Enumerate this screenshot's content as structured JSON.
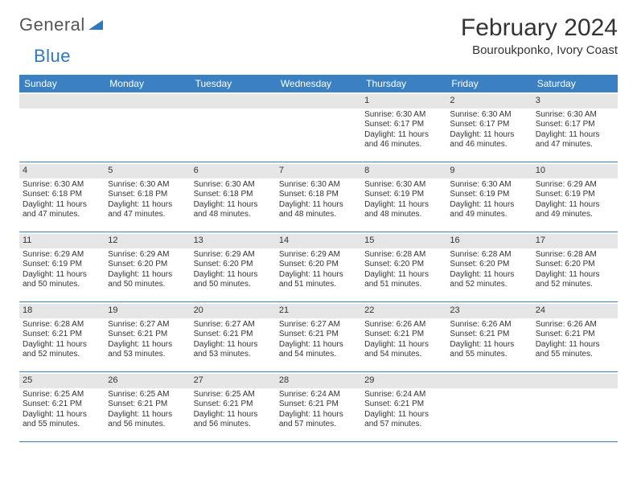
{
  "logo": {
    "word1": "General",
    "word2": "Blue"
  },
  "header": {
    "title": "February 2024",
    "location": "Bouroukponko, Ivory Coast"
  },
  "colors": {
    "header_bg": "#3a80c3",
    "header_text": "#ffffff",
    "daynum_bg": "#e6e6e6",
    "logo_gray": "#555555",
    "logo_blue": "#2e79bd",
    "row_border": "#3a80c3"
  },
  "weekdays": [
    "Sunday",
    "Monday",
    "Tuesday",
    "Wednesday",
    "Thursday",
    "Friday",
    "Saturday"
  ],
  "weeks": [
    [
      {
        "day": "",
        "sunrise": "",
        "sunset": "",
        "daylight": ""
      },
      {
        "day": "",
        "sunrise": "",
        "sunset": "",
        "daylight": ""
      },
      {
        "day": "",
        "sunrise": "",
        "sunset": "",
        "daylight": ""
      },
      {
        "day": "",
        "sunrise": "",
        "sunset": "",
        "daylight": ""
      },
      {
        "day": "1",
        "sunrise": "Sunrise: 6:30 AM",
        "sunset": "Sunset: 6:17 PM",
        "daylight": "Daylight: 11 hours and 46 minutes."
      },
      {
        "day": "2",
        "sunrise": "Sunrise: 6:30 AM",
        "sunset": "Sunset: 6:17 PM",
        "daylight": "Daylight: 11 hours and 46 minutes."
      },
      {
        "day": "3",
        "sunrise": "Sunrise: 6:30 AM",
        "sunset": "Sunset: 6:17 PM",
        "daylight": "Daylight: 11 hours and 47 minutes."
      }
    ],
    [
      {
        "day": "4",
        "sunrise": "Sunrise: 6:30 AM",
        "sunset": "Sunset: 6:18 PM",
        "daylight": "Daylight: 11 hours and 47 minutes."
      },
      {
        "day": "5",
        "sunrise": "Sunrise: 6:30 AM",
        "sunset": "Sunset: 6:18 PM",
        "daylight": "Daylight: 11 hours and 47 minutes."
      },
      {
        "day": "6",
        "sunrise": "Sunrise: 6:30 AM",
        "sunset": "Sunset: 6:18 PM",
        "daylight": "Daylight: 11 hours and 48 minutes."
      },
      {
        "day": "7",
        "sunrise": "Sunrise: 6:30 AM",
        "sunset": "Sunset: 6:18 PM",
        "daylight": "Daylight: 11 hours and 48 minutes."
      },
      {
        "day": "8",
        "sunrise": "Sunrise: 6:30 AM",
        "sunset": "Sunset: 6:19 PM",
        "daylight": "Daylight: 11 hours and 48 minutes."
      },
      {
        "day": "9",
        "sunrise": "Sunrise: 6:30 AM",
        "sunset": "Sunset: 6:19 PM",
        "daylight": "Daylight: 11 hours and 49 minutes."
      },
      {
        "day": "10",
        "sunrise": "Sunrise: 6:29 AM",
        "sunset": "Sunset: 6:19 PM",
        "daylight": "Daylight: 11 hours and 49 minutes."
      }
    ],
    [
      {
        "day": "11",
        "sunrise": "Sunrise: 6:29 AM",
        "sunset": "Sunset: 6:19 PM",
        "daylight": "Daylight: 11 hours and 50 minutes."
      },
      {
        "day": "12",
        "sunrise": "Sunrise: 6:29 AM",
        "sunset": "Sunset: 6:20 PM",
        "daylight": "Daylight: 11 hours and 50 minutes."
      },
      {
        "day": "13",
        "sunrise": "Sunrise: 6:29 AM",
        "sunset": "Sunset: 6:20 PM",
        "daylight": "Daylight: 11 hours and 50 minutes."
      },
      {
        "day": "14",
        "sunrise": "Sunrise: 6:29 AM",
        "sunset": "Sunset: 6:20 PM",
        "daylight": "Daylight: 11 hours and 51 minutes."
      },
      {
        "day": "15",
        "sunrise": "Sunrise: 6:28 AM",
        "sunset": "Sunset: 6:20 PM",
        "daylight": "Daylight: 11 hours and 51 minutes."
      },
      {
        "day": "16",
        "sunrise": "Sunrise: 6:28 AM",
        "sunset": "Sunset: 6:20 PM",
        "daylight": "Daylight: 11 hours and 52 minutes."
      },
      {
        "day": "17",
        "sunrise": "Sunrise: 6:28 AM",
        "sunset": "Sunset: 6:20 PM",
        "daylight": "Daylight: 11 hours and 52 minutes."
      }
    ],
    [
      {
        "day": "18",
        "sunrise": "Sunrise: 6:28 AM",
        "sunset": "Sunset: 6:21 PM",
        "daylight": "Daylight: 11 hours and 52 minutes."
      },
      {
        "day": "19",
        "sunrise": "Sunrise: 6:27 AM",
        "sunset": "Sunset: 6:21 PM",
        "daylight": "Daylight: 11 hours and 53 minutes."
      },
      {
        "day": "20",
        "sunrise": "Sunrise: 6:27 AM",
        "sunset": "Sunset: 6:21 PM",
        "daylight": "Daylight: 11 hours and 53 minutes."
      },
      {
        "day": "21",
        "sunrise": "Sunrise: 6:27 AM",
        "sunset": "Sunset: 6:21 PM",
        "daylight": "Daylight: 11 hours and 54 minutes."
      },
      {
        "day": "22",
        "sunrise": "Sunrise: 6:26 AM",
        "sunset": "Sunset: 6:21 PM",
        "daylight": "Daylight: 11 hours and 54 minutes."
      },
      {
        "day": "23",
        "sunrise": "Sunrise: 6:26 AM",
        "sunset": "Sunset: 6:21 PM",
        "daylight": "Daylight: 11 hours and 55 minutes."
      },
      {
        "day": "24",
        "sunrise": "Sunrise: 6:26 AM",
        "sunset": "Sunset: 6:21 PM",
        "daylight": "Daylight: 11 hours and 55 minutes."
      }
    ],
    [
      {
        "day": "25",
        "sunrise": "Sunrise: 6:25 AM",
        "sunset": "Sunset: 6:21 PM",
        "daylight": "Daylight: 11 hours and 55 minutes."
      },
      {
        "day": "26",
        "sunrise": "Sunrise: 6:25 AM",
        "sunset": "Sunset: 6:21 PM",
        "daylight": "Daylight: 11 hours and 56 minutes."
      },
      {
        "day": "27",
        "sunrise": "Sunrise: 6:25 AM",
        "sunset": "Sunset: 6:21 PM",
        "daylight": "Daylight: 11 hours and 56 minutes."
      },
      {
        "day": "28",
        "sunrise": "Sunrise: 6:24 AM",
        "sunset": "Sunset: 6:21 PM",
        "daylight": "Daylight: 11 hours and 57 minutes."
      },
      {
        "day": "29",
        "sunrise": "Sunrise: 6:24 AM",
        "sunset": "Sunset: 6:21 PM",
        "daylight": "Daylight: 11 hours and 57 minutes."
      },
      {
        "day": "",
        "sunrise": "",
        "sunset": "",
        "daylight": ""
      },
      {
        "day": "",
        "sunrise": "",
        "sunset": "",
        "daylight": ""
      }
    ]
  ]
}
